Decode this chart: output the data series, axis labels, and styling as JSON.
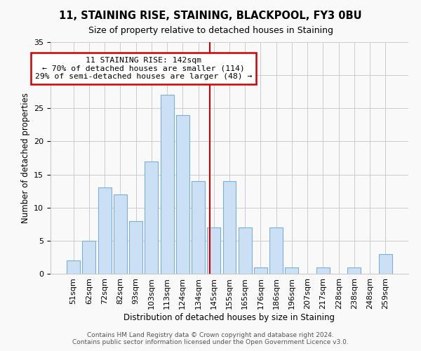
{
  "title": "11, STAINING RISE, STAINING, BLACKPOOL, FY3 0BU",
  "subtitle": "Size of property relative to detached houses in Staining",
  "xlabel": "Distribution of detached houses by size in Staining",
  "ylabel": "Number of detached properties",
  "footer_line1": "Contains HM Land Registry data © Crown copyright and database right 2024.",
  "footer_line2": "Contains public sector information licensed under the Open Government Licence v3.0.",
  "bin_labels": [
    "51sqm",
    "62sqm",
    "72sqm",
    "82sqm",
    "93sqm",
    "103sqm",
    "113sqm",
    "124sqm",
    "134sqm",
    "145sqm",
    "155sqm",
    "165sqm",
    "176sqm",
    "186sqm",
    "196sqm",
    "207sqm",
    "217sqm",
    "228sqm",
    "238sqm",
    "248sqm",
    "259sqm"
  ],
  "bar_heights": [
    2,
    5,
    13,
    12,
    8,
    17,
    27,
    24,
    14,
    7,
    14,
    7,
    1,
    7,
    1,
    0,
    1,
    0,
    1,
    0,
    3
  ],
  "bar_color": "#cce0f5",
  "bar_edgecolor": "#7bafd4",
  "highlight_line_color": "#cc0000",
  "annotation_line1": "11 STAINING RISE: 142sqm",
  "annotation_line2": "← 70% of detached houses are smaller (114)",
  "annotation_line3": "29% of semi-detached houses are larger (48) →",
  "annotation_box_facecolor": "#ffffff",
  "annotation_box_edgecolor": "#cc0000",
  "ylim": [
    0,
    35
  ],
  "yticks": [
    0,
    5,
    10,
    15,
    20,
    25,
    30,
    35
  ],
  "grid_color": "#cccccc",
  "background_color": "#f9f9f9",
  "title_fontsize": 10.5,
  "subtitle_fontsize": 9,
  "ylabel_fontsize": 8.5,
  "xlabel_fontsize": 8.5,
  "tick_fontsize": 8,
  "footer_fontsize": 6.5
}
